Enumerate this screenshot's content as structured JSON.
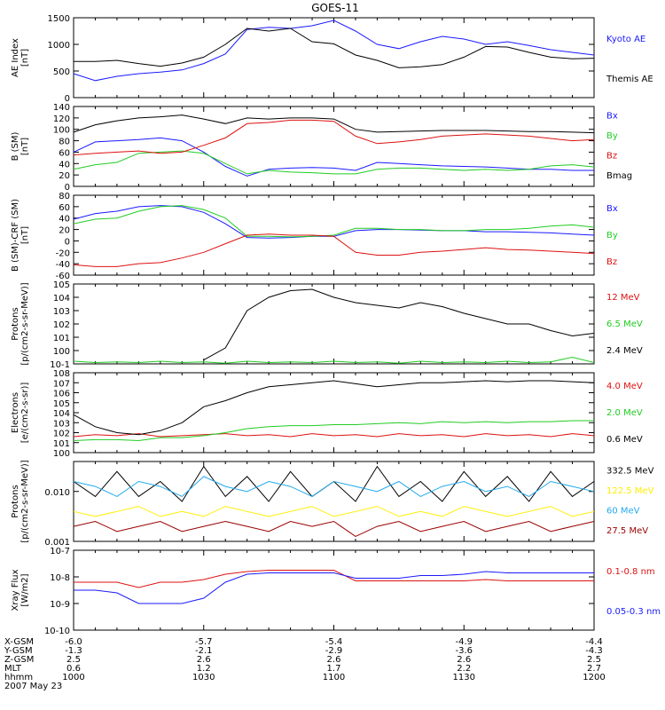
{
  "page_title": "GOES-11",
  "colors": {
    "black": "#000000",
    "blue": "#1a1aff",
    "green": "#22cc22",
    "red": "#dd1111",
    "yellow": "#ffee00",
    "cyan": "#22aaee",
    "darkred": "#990000"
  },
  "chart_data": [
    {
      "type": "line",
      "log": false,
      "ylim": [
        0,
        1500
      ],
      "yticks": [
        0,
        500,
        1000,
        1500
      ],
      "tick_labels": [
        "0",
        "500",
        "1000",
        "1500"
      ],
      "ylabel": [
        "AE Index",
        "[nT]"
      ],
      "x": [
        "1000",
        "1005",
        "1010",
        "1015",
        "1020",
        "1025",
        "1030",
        "1035",
        "1040",
        "1045",
        "1050",
        "1055",
        "1100",
        "1105",
        "1110",
        "1115",
        "1120",
        "1125",
        "1130",
        "1135",
        "1140",
        "1145",
        "1150",
        "1155",
        "1200"
      ],
      "series": [
        {
          "name": "Kyoto AE",
          "color": "blue",
          "values": [
            450,
            320,
            400,
            450,
            480,
            520,
            640,
            820,
            1280,
            1320,
            1300,
            1350,
            1450,
            1250,
            1000,
            920,
            1050,
            1150,
            1100,
            1000,
            1050,
            980,
            900,
            850,
            800
          ]
        },
        {
          "name": "Themis AE",
          "color": "black",
          "values": [
            680,
            680,
            700,
            640,
            590,
            650,
            760,
            1000,
            1300,
            1250,
            1300,
            1050,
            1010,
            800,
            700,
            560,
            580,
            620,
            760,
            960,
            950,
            850,
            760,
            730,
            740
          ]
        }
      ]
    },
    {
      "type": "line",
      "log": false,
      "ylim": [
        0,
        140
      ],
      "yticks": [
        0,
        20,
        40,
        60,
        80,
        100,
        120,
        140
      ],
      "tick_labels": [
        "0",
        "20",
        "40",
        "60",
        "80",
        "100",
        "120",
        "140"
      ],
      "ylabel": [
        "B (SM)",
        "[nT]"
      ],
      "x": [
        "1000",
        "1005",
        "1010",
        "1015",
        "1020",
        "1025",
        "1030",
        "1035",
        "1040",
        "1045",
        "1050",
        "1055",
        "1100",
        "1105",
        "1110",
        "1115",
        "1120",
        "1125",
        "1130",
        "1135",
        "1140",
        "1145",
        "1150",
        "1155",
        "1200"
      ],
      "series": [
        {
          "name": "Bx",
          "color": "blue",
          "values": [
            60,
            78,
            80,
            82,
            85,
            80,
            60,
            35,
            18,
            30,
            32,
            33,
            32,
            28,
            42,
            40,
            38,
            36,
            35,
            34,
            32,
            30,
            30,
            28,
            28
          ]
        },
        {
          "name": "By",
          "color": "green",
          "values": [
            30,
            38,
            42,
            58,
            60,
            62,
            58,
            40,
            22,
            28,
            25,
            24,
            22,
            22,
            30,
            32,
            32,
            30,
            28,
            30,
            28,
            30,
            36,
            38,
            34
          ]
        },
        {
          "name": "Bz",
          "color": "red",
          "values": [
            55,
            58,
            60,
            62,
            58,
            60,
            72,
            85,
            110,
            112,
            116,
            116,
            114,
            88,
            75,
            78,
            82,
            88,
            90,
            92,
            90,
            88,
            84,
            80,
            82
          ]
        },
        {
          "name": "Bmag",
          "color": "black",
          "values": [
            95,
            108,
            115,
            120,
            122,
            125,
            118,
            110,
            120,
            118,
            120,
            120,
            118,
            100,
            95,
            96,
            97,
            98,
            98,
            98,
            97,
            96,
            96,
            95,
            94
          ]
        }
      ]
    },
    {
      "type": "line",
      "log": false,
      "ylim": [
        -60,
        80
      ],
      "yticks": [
        -60,
        -40,
        -20,
        0,
        20,
        40,
        60,
        80
      ],
      "tick_labels": [
        "-60",
        "-40",
        "-20",
        "0",
        "20",
        "40",
        "60",
        "80"
      ],
      "ylabel": [
        "B (SM)-CRF (SM)",
        "[nT]"
      ],
      "x": [
        "1000",
        "1005",
        "1010",
        "1015",
        "1020",
        "1025",
        "1030",
        "1035",
        "1040",
        "1045",
        "1050",
        "1055",
        "1100",
        "1105",
        "1110",
        "1115",
        "1120",
        "1125",
        "1130",
        "1135",
        "1140",
        "1145",
        "1150",
        "1155",
        "1200"
      ],
      "series": [
        {
          "name": "Bx",
          "color": "blue",
          "values": [
            38,
            48,
            52,
            60,
            62,
            60,
            50,
            30,
            6,
            5,
            6,
            8,
            8,
            18,
            20,
            20,
            19,
            18,
            18,
            16,
            16,
            15,
            14,
            12,
            10
          ]
        },
        {
          "name": "By",
          "color": "green",
          "values": [
            30,
            38,
            40,
            52,
            60,
            62,
            55,
            40,
            8,
            8,
            7,
            8,
            10,
            22,
            22,
            20,
            20,
            18,
            18,
            20,
            20,
            22,
            26,
            28,
            24
          ]
        },
        {
          "name": "Bz",
          "color": "red",
          "values": [
            -42,
            -45,
            -45,
            -40,
            -38,
            -30,
            -20,
            -5,
            10,
            12,
            10,
            10,
            8,
            -20,
            -25,
            -25,
            -20,
            -18,
            -15,
            -12,
            -15,
            -16,
            -18,
            -20,
            -22
          ]
        }
      ]
    },
    {
      "type": "line",
      "log": true,
      "ylim": [
        -1,
        5
      ],
      "yticks": [
        -1,
        0,
        1,
        2,
        3,
        4,
        5
      ],
      "tick_labels": [
        "10-1",
        "100",
        "101",
        "102",
        "103",
        "104",
        "105"
      ],
      "ylabel": [
        "Protons",
        "[p/(cm2-s-sr-MeV)]"
      ],
      "x": [
        "1000",
        "1005",
        "1010",
        "1015",
        "1020",
        "1025",
        "1030",
        "1035",
        "1040",
        "1045",
        "1050",
        "1055",
        "1100",
        "1105",
        "1110",
        "1115",
        "1120",
        "1125",
        "1130",
        "1135",
        "1140",
        "1145",
        "1150",
        "1155",
        "1200"
      ],
      "series": [
        {
          "name": "12 MeV",
          "color": "red",
          "values": [
            -0.85,
            null,
            -0.9,
            null,
            -0.8,
            null,
            -0.9,
            null,
            -0.85,
            null,
            -0.9,
            null,
            -0.8,
            null,
            -0.85,
            null,
            -0.9,
            null,
            -0.85,
            null,
            -0.9,
            null,
            -0.8,
            null,
            -0.9
          ]
        },
        {
          "name": "6.5 MeV",
          "color": "green",
          "values": [
            -0.8,
            -0.9,
            -0.85,
            -0.9,
            -0.8,
            -0.9,
            -0.85,
            -0.95,
            -0.8,
            -0.9,
            -0.85,
            -0.9,
            -0.8,
            -0.9,
            -0.85,
            -0.95,
            -0.8,
            -0.9,
            -0.85,
            -0.9,
            -0.8,
            -0.9,
            -0.85,
            -0.5,
            -0.9
          ]
        },
        {
          "name": "2.4 MeV",
          "color": "black",
          "values": [
            null,
            null,
            null,
            null,
            null,
            null,
            -0.7,
            0.2,
            3.0,
            4.0,
            4.5,
            4.6,
            4.0,
            3.6,
            3.4,
            3.2,
            3.6,
            3.3,
            2.8,
            2.4,
            2.0,
            2.0,
            1.5,
            1.1,
            1.3
          ]
        }
      ]
    },
    {
      "type": "line",
      "log": true,
      "ylim": [
        0,
        8
      ],
      "yticks": [
        0,
        1,
        2,
        3,
        4,
        5,
        6,
        7,
        8
      ],
      "tick_labels": [
        "100",
        "101",
        "102",
        "103",
        "104",
        "105",
        "106",
        "107",
        "108"
      ],
      "ylabel": [
        "Electrons",
        "[e/(cm2-s-sr)]"
      ],
      "x": [
        "1000",
        "1005",
        "1010",
        "1015",
        "1020",
        "1025",
        "1030",
        "1035",
        "1040",
        "1045",
        "1050",
        "1055",
        "1100",
        "1105",
        "1110",
        "1115",
        "1120",
        "1125",
        "1130",
        "1135",
        "1140",
        "1145",
        "1150",
        "1155",
        "1200"
      ],
      "series": [
        {
          "name": "4.0 MeV",
          "color": "red",
          "values": [
            1.6,
            1.8,
            1.7,
            1.9,
            1.6,
            1.7,
            1.8,
            1.9,
            1.7,
            1.8,
            1.6,
            1.9,
            1.7,
            1.8,
            1.6,
            1.9,
            1.7,
            1.8,
            1.6,
            1.9,
            1.7,
            1.8,
            1.6,
            1.9,
            1.7
          ]
        },
        {
          "name": "2.0 MeV",
          "color": "green",
          "values": [
            1.2,
            1.3,
            1.3,
            1.2,
            1.5,
            1.5,
            1.7,
            2.0,
            2.4,
            2.6,
            2.7,
            2.7,
            2.8,
            2.8,
            2.9,
            3.0,
            2.9,
            3.1,
            3.0,
            3.1,
            3.0,
            3.1,
            3.1,
            3.2,
            3.2
          ]
        },
        {
          "name": "0.6 MeV",
          "color": "black",
          "values": [
            3.8,
            2.6,
            2.0,
            1.8,
            2.2,
            3.0,
            4.6,
            5.2,
            6.0,
            6.6,
            6.8,
            7.0,
            7.2,
            6.9,
            6.6,
            6.8,
            7.0,
            7.0,
            7.1,
            7.2,
            7.1,
            7.2,
            7.2,
            7.1,
            7.0
          ]
        }
      ]
    },
    {
      "type": "line",
      "log": true,
      "ylim": [
        -3,
        -1.4
      ],
      "yticks": [
        -3,
        -2
      ],
      "tick_labels": [
        "0.001",
        "0.010"
      ],
      "ylabel": [
        "Protons",
        "[p/(cm2-s-sr-MeV)]"
      ],
      "x": [
        "1000",
        "1005",
        "1010",
        "1015",
        "1020",
        "1025",
        "1030",
        "1035",
        "1040",
        "1045",
        "1050",
        "1055",
        "1100",
        "1105",
        "1110",
        "1115",
        "1120",
        "1125",
        "1130",
        "1135",
        "1140",
        "1145",
        "1150",
        "1155",
        "1200"
      ],
      "series": [
        {
          "name": "332.5 MeV",
          "color": "black",
          "values": [
            -1.8,
            -2.1,
            -1.6,
            -2.1,
            -1.8,
            -2.2,
            -1.5,
            -2.1,
            -1.7,
            -2.2,
            -1.6,
            -2.1,
            -1.8,
            -2.2,
            -1.5,
            -2.1,
            -1.8,
            -2.2,
            -1.6,
            -2.1,
            -1.7,
            -2.2,
            -1.6,
            -2.1,
            -1.8
          ]
        },
        {
          "name": "122.5 MeV",
          "color": "yellow",
          "values": [
            -2.4,
            -2.5,
            -2.4,
            -2.3,
            -2.5,
            -2.4,
            -2.5,
            -2.3,
            -2.4,
            -2.5,
            -2.4,
            -2.3,
            -2.5,
            -2.4,
            -2.3,
            -2.5,
            -2.4,
            -2.5,
            -2.3,
            -2.4,
            -2.5,
            -2.4,
            -2.3,
            -2.5,
            -2.4
          ]
        },
        {
          "name": "60 MeV",
          "color": "cyan",
          "values": [
            -1.8,
            -1.9,
            -2.1,
            -1.8,
            -1.9,
            -2.1,
            -1.7,
            -1.9,
            -2.0,
            -1.8,
            -1.9,
            -2.1,
            -1.8,
            -1.9,
            -2.0,
            -1.8,
            -2.1,
            -1.9,
            -1.8,
            -2.0,
            -1.9,
            -2.1,
            -1.8,
            -1.9,
            -2.0
          ]
        },
        {
          "name": "27.5 MeV",
          "color": "darkred",
          "values": [
            -2.7,
            -2.6,
            -2.8,
            -2.7,
            -2.6,
            -2.8,
            -2.7,
            -2.6,
            -2.7,
            -2.8,
            -2.6,
            -2.7,
            -2.6,
            -2.9,
            -2.7,
            -2.6,
            -2.8,
            -2.7,
            -2.6,
            -2.8,
            -2.7,
            -2.6,
            -2.8,
            -2.7,
            -2.6
          ]
        }
      ]
    },
    {
      "type": "line",
      "log": true,
      "ylim": [
        -10,
        -7
      ],
      "yticks": [
        -10,
        -9,
        -8,
        -7
      ],
      "tick_labels": [
        "10-10",
        "10-9",
        "10-8",
        "10-7"
      ],
      "ylabel": [
        "Xray Flux",
        "[W/m2]"
      ],
      "x": [
        "1000",
        "1005",
        "1010",
        "1015",
        "1020",
        "1025",
        "1030",
        "1035",
        "1040",
        "1045",
        "1050",
        "1055",
        "1100",
        "1105",
        "1110",
        "1115",
        "1120",
        "1125",
        "1130",
        "1135",
        "1140",
        "1145",
        "1150",
        "1155",
        "1200"
      ],
      "series": [
        {
          "name": "0.1-0.8 nm",
          "color": "red",
          "values": [
            -8.2,
            -8.2,
            -8.2,
            -8.4,
            -8.2,
            -8.2,
            -8.1,
            -7.9,
            -7.8,
            -7.75,
            -7.75,
            -7.75,
            -7.75,
            -8.15,
            -8.15,
            -8.15,
            -8.15,
            -8.15,
            -8.15,
            -8.1,
            -8.15,
            -8.15,
            -8.15,
            -8.15,
            -8.15
          ]
        },
        {
          "name": "0.05-0.3 nm",
          "color": "blue",
          "values": [
            -8.5,
            -8.5,
            -8.6,
            -9.0,
            -9.0,
            -9.0,
            -8.8,
            -8.2,
            -7.9,
            -7.85,
            -7.85,
            -7.85,
            -7.85,
            -8.05,
            -8.05,
            -8.05,
            -7.95,
            -7.95,
            -7.9,
            -7.8,
            -7.85,
            -7.85,
            -7.85,
            -7.85,
            -7.85
          ]
        }
      ]
    }
  ],
  "footer": {
    "rows": [
      {
        "label": "X-GSM",
        "values": [
          "-6.0",
          "-5.7",
          "-5.4",
          "-4.9",
          "-4.4"
        ]
      },
      {
        "label": "Y-GSM",
        "values": [
          "-1.3",
          "-2.1",
          "-2.9",
          "-3.6",
          "-4.3"
        ]
      },
      {
        "label": "Z-GSM",
        "values": [
          "2.5",
          "2.6",
          "2.6",
          "2.6",
          "2.5"
        ]
      },
      {
        "label": "MLT",
        "values": [
          "0.6",
          "1.2",
          "1.7",
          "2.2",
          "2.7"
        ]
      },
      {
        "label": "hhmm",
        "values": [
          "1000",
          "1030",
          "1100",
          "1130",
          "1200"
        ]
      }
    ],
    "date": "2007 May 23"
  }
}
